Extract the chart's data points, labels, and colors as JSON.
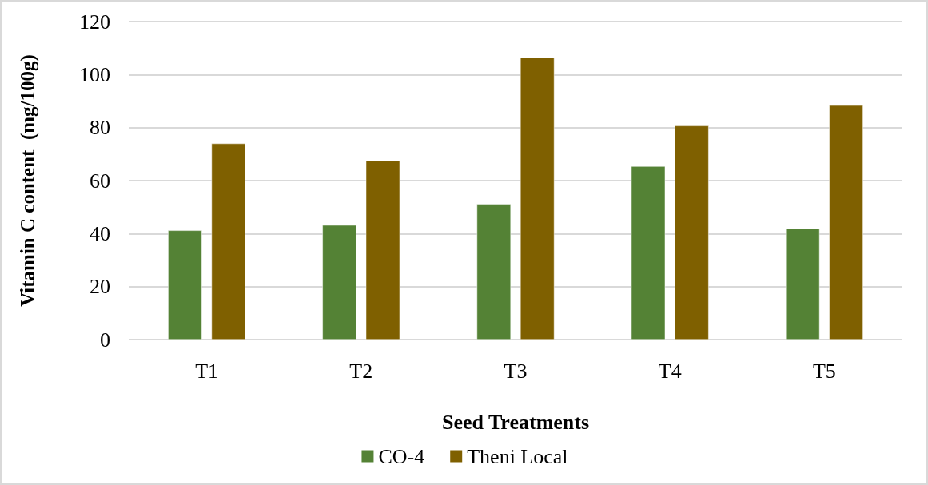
{
  "chart_data": {
    "type": "bar",
    "xlabel": "Seed Treatments",
    "ylabel": "Vitamin C content  (mg/100g)",
    "categories": [
      "T1",
      "T2",
      "T3",
      "T4",
      "T5"
    ],
    "series": [
      {
        "name": "CO-4",
        "color": "#548235",
        "values": [
          41.2,
          43.2,
          51.2,
          65.4,
          42.0
        ]
      },
      {
        "name": "Theni Local",
        "color": "#7f6000",
        "values": [
          74.0,
          67.5,
          106.5,
          80.7,
          88.4
        ]
      }
    ],
    "ylim": [
      0,
      120
    ],
    "yticks": [
      0,
      20,
      40,
      60,
      80,
      100,
      120
    ],
    "grid": "y",
    "legend": "bottom"
  }
}
